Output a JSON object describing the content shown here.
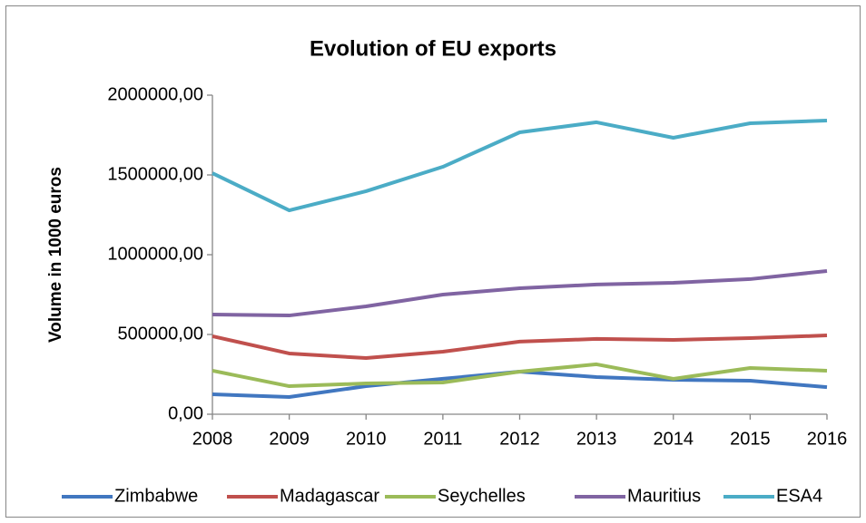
{
  "chart_data": {
    "type": "line",
    "title": "Evolution of EU exports",
    "y_label": "Volume in 1000 euros",
    "categories": [
      "2008",
      "2009",
      "2010",
      "2011",
      "2012",
      "2013",
      "2014",
      "2015",
      "2016"
    ],
    "series": [
      {
        "name": "Zimbabwe",
        "color": "#4177c0",
        "values": [
          125000,
          108000,
          176000,
          222000,
          267000,
          233000,
          216000,
          210000,
          170000
        ]
      },
      {
        "name": "Madagascar",
        "color": "#c0504d",
        "values": [
          489000,
          381000,
          352000,
          392000,
          455000,
          472000,
          466000,
          477000,
          494000
        ]
      },
      {
        "name": "Seychelles",
        "color": "#9bbb59",
        "values": [
          273000,
          176000,
          193000,
          199000,
          267000,
          313000,
          222000,
          290000,
          273000
        ]
      },
      {
        "name": "Mauritius",
        "color": "#8064a2",
        "values": [
          625000,
          619000,
          676000,
          750000,
          790000,
          813000,
          824000,
          847000,
          898000
        ]
      },
      {
        "name": "ESA4",
        "color": "#4bacc6",
        "values": [
          1511000,
          1278000,
          1398000,
          1551000,
          1767000,
          1830000,
          1733000,
          1824000,
          1841000
        ]
      }
    ],
    "ylim": [
      0,
      2000000
    ],
    "yticks": [
      {
        "value": 0,
        "label": "0,00"
      },
      {
        "value": 500000,
        "label": "500000,00"
      },
      {
        "value": 1000000,
        "label": "1000000,00"
      },
      {
        "value": 1500000,
        "label": "1500000,00"
      },
      {
        "value": 2000000,
        "label": "2000000,00"
      }
    ],
    "grid": false,
    "legend": "bottom"
  }
}
